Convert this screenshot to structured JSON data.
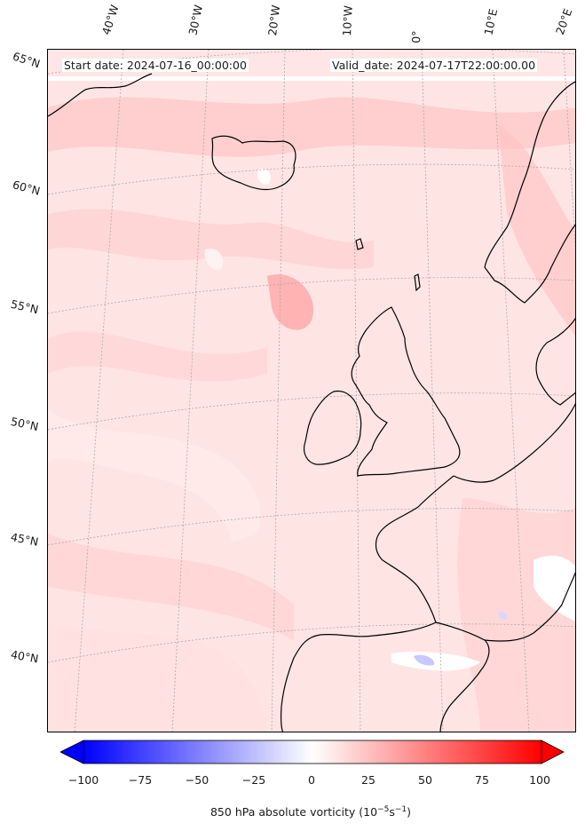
{
  "start_date": "Start date: 2024-07-16_00:00:00",
  "valid_date": "Valid_date: 2024-07-17T22:00:00.00",
  "longitude_labels": [
    "40°W",
    "30°W",
    "20°W",
    "10°W",
    "0°",
    "10°E",
    "20°E"
  ],
  "latitude_labels": [
    "65°N",
    "60°N",
    "55°N",
    "50°N",
    "45°N",
    "40°N"
  ],
  "colorbar": {
    "ticks": [
      "−100",
      "−75",
      "−50",
      "−25",
      "0",
      "25",
      "50",
      "75",
      "100"
    ],
    "title_prefix": "850 hPa absolute vorticity (10",
    "title_exp1": "−5",
    "title_mid": "s",
    "title_exp2": "−1",
    "title_suffix": ")",
    "min_color": "#0000ff",
    "mid_color": "#ffffff",
    "max_color": "#ff0000",
    "range": [
      -100,
      100
    ],
    "extend": "both"
  },
  "colors": {
    "field_background": "#ffe3e3",
    "coastline": "#000000",
    "gridline": "#aaaaaa"
  }
}
